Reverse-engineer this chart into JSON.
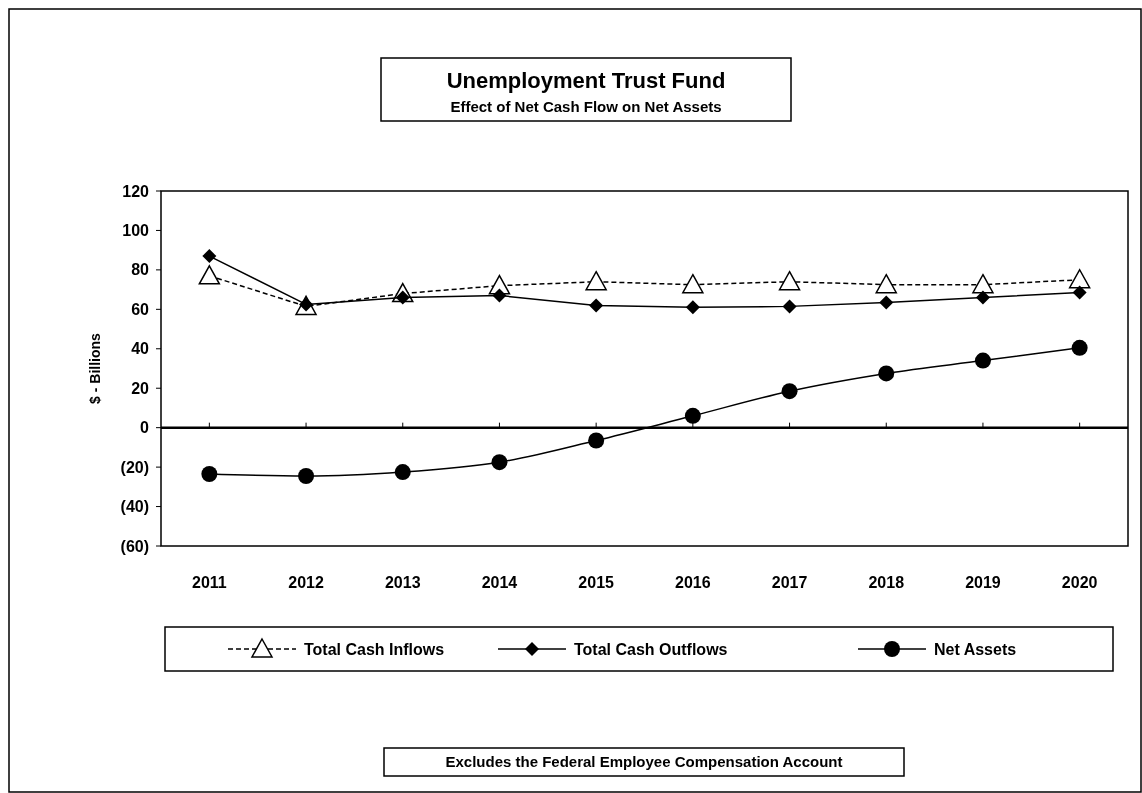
{
  "chart_data": {
    "type": "line",
    "title": "Unemployment Trust Fund",
    "subtitle": "Effect of Net Cash Flow on Net Assets",
    "ylabel": "$ - Billions",
    "categories": [
      "2011",
      "2012",
      "2013",
      "2014",
      "2015",
      "2016",
      "2017",
      "2018",
      "2019",
      "2020"
    ],
    "series": [
      {
        "name": "Total Cash Inflows",
        "color": "#000000",
        "marker": "triangle",
        "line_style": "dashed",
        "values": [
          77,
          61.5,
          68,
          72,
          74,
          72.5,
          74,
          72.5,
          72.5,
          75
        ]
      },
      {
        "name": "Total Cash Outflows",
        "color": "#000000",
        "marker": "diamond",
        "line_style": "solid",
        "values": [
          87,
          62.5,
          66,
          67,
          62,
          61,
          61.5,
          63.5,
          66,
          68.5
        ]
      },
      {
        "name": "Net Assets",
        "color": "#000000",
        "marker": "circle",
        "line_style": "solid",
        "values": [
          -23.5,
          -24.5,
          -22.5,
          -17.5,
          -6.5,
          6,
          18.5,
          27.5,
          34,
          40.5
        ]
      }
    ],
    "ylim": [
      -60,
      120
    ],
    "yticks": [
      {
        "value": -60,
        "label": "(60)"
      },
      {
        "value": -40,
        "label": "(40)"
      },
      {
        "value": -20,
        "label": "(20)"
      },
      0,
      20,
      40,
      60,
      80,
      100,
      120
    ],
    "ref_lines": [
      {
        "axis": "y",
        "value": 0,
        "label": null
      }
    ],
    "grid": false,
    "legend": "bottom",
    "annotations": [
      "Excludes the Federal Employee Compensation Account"
    ]
  }
}
